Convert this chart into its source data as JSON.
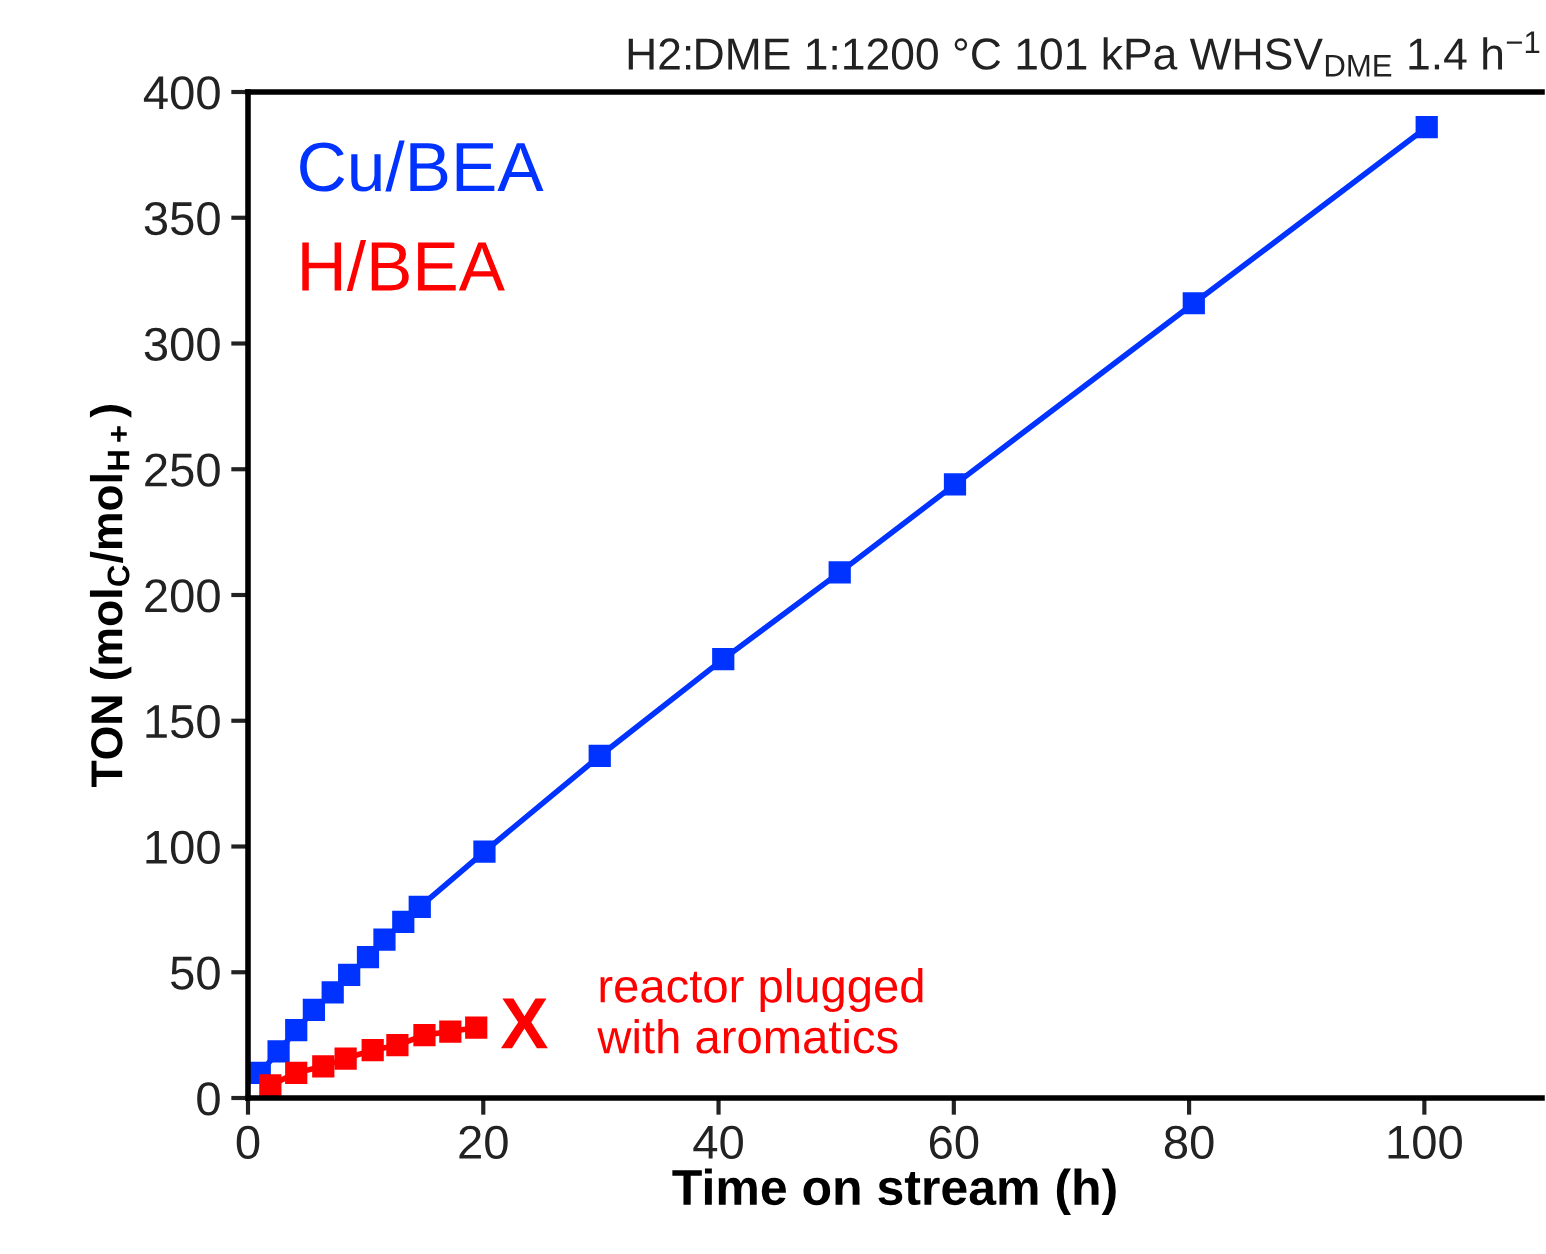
{
  "chart_data": {
    "type": "line",
    "title": "H2:DME 1:1200 °C 101 kPa WHSV$_{DME}$ 1.4 h$^{−1}$",
    "xlabel": "Time on stream (h)",
    "ylabel": "TON (mol$_{C}$/mol$_{H+}$)",
    "xlim": [
      0,
      110
    ],
    "xticks": [
      0,
      20,
      40,
      60,
      80,
      100
    ],
    "ylim": [
      0,
      400
    ],
    "yticks": [
      0,
      50,
      100,
      150,
      200,
      250,
      300,
      350,
      400
    ],
    "marker": "square",
    "line_style": "solid",
    "grid": false,
    "legend": "top left",
    "series": [
      {
        "name": "Cu/BEA",
        "color": "#0033ff",
        "x": [
          1.0,
          2.6,
          4.1,
          5.6,
          7.2,
          8.6,
          10.2,
          11.6,
          13.2,
          14.6,
          20.1,
          29.9,
          40.4,
          50.3,
          60.1,
          80.4,
          100.2
        ],
        "values": [
          10,
          18.5,
          27,
          35,
          42,
          49,
          56,
          63,
          70,
          76,
          98,
          136,
          174.5,
          209,
          244,
          316,
          386
        ]
      },
      {
        "name": "H/BEA",
        "color": "#ff0000",
        "x": [
          1.9,
          4.1,
          6.4,
          8.3,
          10.6,
          12.7,
          15.0,
          17.2,
          19.4
        ],
        "values": [
          5,
          10,
          12.6,
          15.7,
          19,
          21,
          25,
          26.4,
          28
        ]
      }
    ],
    "annotations": [
      "X",
      "reactor plugged\nwith aromatics"
    ]
  }
}
